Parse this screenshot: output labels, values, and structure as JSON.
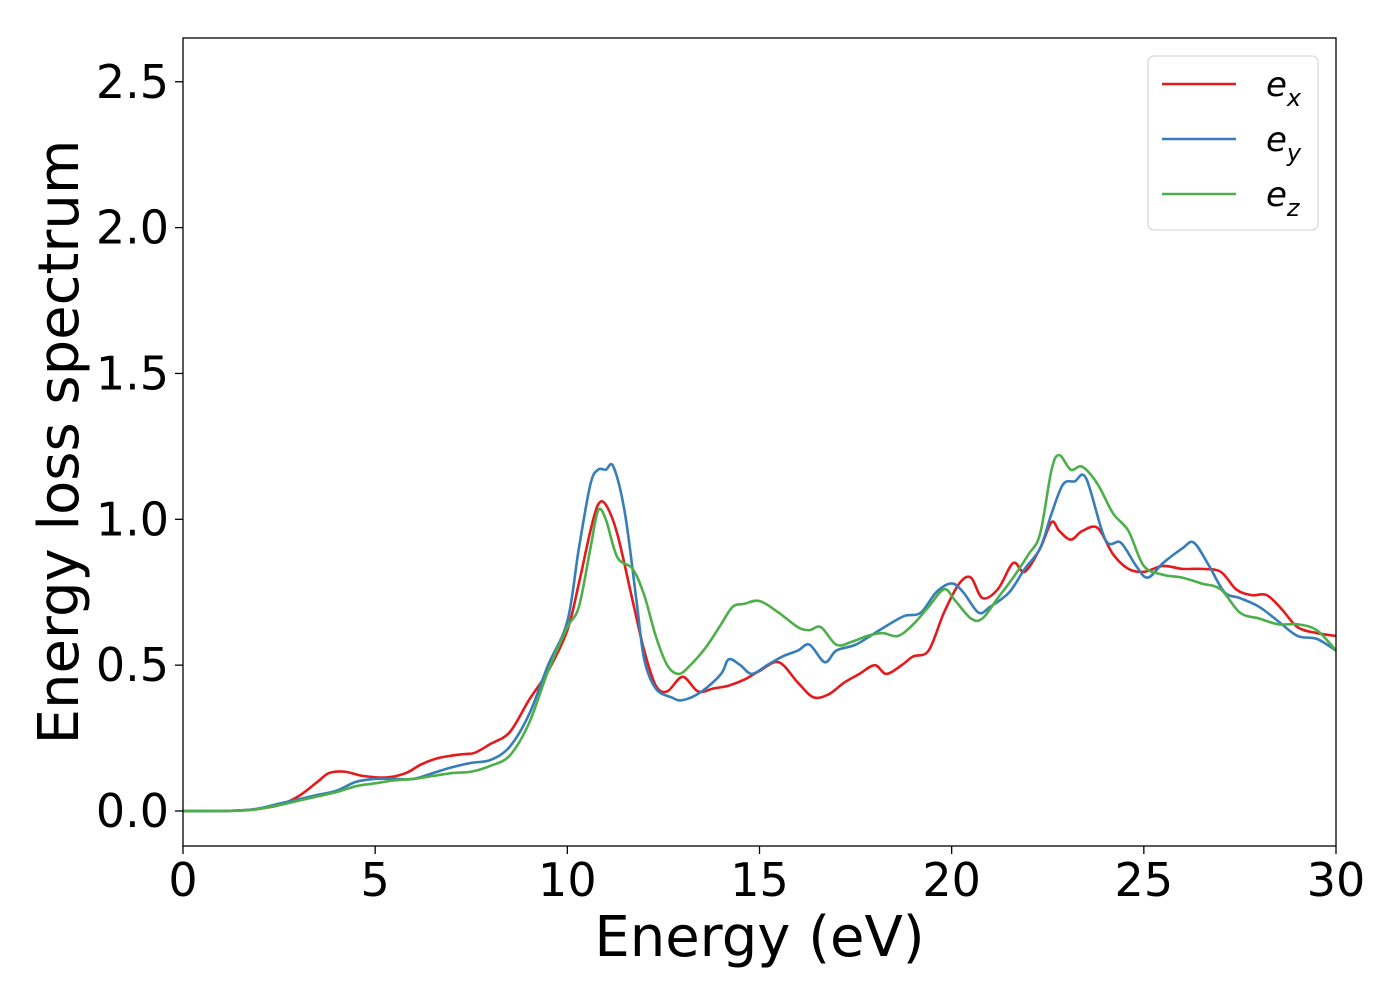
{
  "chart_data": {
    "type": "line",
    "xlabel": "Energy (eV)",
    "ylabel": "Energy loss spectrum",
    "xlim": [
      0,
      30
    ],
    "ylim": [
      -0.12,
      2.65
    ],
    "xticks": [
      0,
      5,
      10,
      15,
      20,
      25,
      30
    ],
    "yticks": [
      0.0,
      0.5,
      1.0,
      1.5,
      2.0,
      2.5
    ],
    "xtick_labels": [
      "0",
      "5",
      "10",
      "15",
      "20",
      "25",
      "30"
    ],
    "ytick_labels": [
      "0.0",
      "0.5",
      "1.0",
      "1.5",
      "2.0",
      "2.5"
    ],
    "grid": false,
    "legend_position": "top-right",
    "series": [
      {
        "name": "e_x",
        "label_main": "e",
        "label_sub": "x",
        "color": "#e41a1c",
        "x": [
          0,
          1,
          1.8,
          2.5,
          3,
          3.5,
          3.8,
          4.2,
          4.7,
          5.3,
          5.8,
          6.2,
          6.6,
          7.0,
          7.3,
          7.6,
          8.0,
          8.5,
          9.0,
          9.5,
          10.0,
          10.3,
          10.6,
          10.8,
          11.0,
          11.3,
          11.7,
          12.0,
          12.3,
          12.6,
          13.0,
          13.4,
          13.8,
          14.2,
          14.6,
          15.0,
          15.5,
          16.0,
          16.4,
          16.8,
          17.2,
          17.6,
          18.0,
          18.3,
          18.7,
          19.0,
          19.4,
          19.8,
          20.2,
          20.5,
          20.8,
          21.2,
          21.6,
          21.9,
          22.3,
          22.6,
          22.8,
          23.1,
          23.4,
          23.8,
          24.2,
          24.6,
          25.0,
          25.5,
          26.0,
          26.5,
          27.0,
          27.4,
          27.8,
          28.2,
          28.6,
          29.0,
          29.5,
          30.0
        ],
        "y": [
          0.0,
          0.0,
          0.005,
          0.02,
          0.05,
          0.1,
          0.13,
          0.135,
          0.12,
          0.115,
          0.13,
          0.16,
          0.18,
          0.19,
          0.195,
          0.2,
          0.23,
          0.27,
          0.38,
          0.48,
          0.62,
          0.78,
          0.96,
          1.05,
          1.05,
          0.95,
          0.72,
          0.55,
          0.43,
          0.41,
          0.46,
          0.41,
          0.42,
          0.43,
          0.45,
          0.48,
          0.51,
          0.44,
          0.39,
          0.4,
          0.44,
          0.47,
          0.5,
          0.47,
          0.5,
          0.53,
          0.55,
          0.68,
          0.78,
          0.8,
          0.73,
          0.76,
          0.85,
          0.82,
          0.9,
          0.99,
          0.96,
          0.93,
          0.96,
          0.97,
          0.88,
          0.83,
          0.82,
          0.84,
          0.83,
          0.83,
          0.82,
          0.76,
          0.74,
          0.74,
          0.69,
          0.63,
          0.61,
          0.6
        ]
      },
      {
        "name": "e_y",
        "label_main": "e",
        "label_sub": "y",
        "color": "#377eb8",
        "x": [
          0,
          1,
          1.8,
          2.5,
          3,
          3.5,
          4.0,
          4.5,
          5.0,
          5.5,
          6.0,
          6.5,
          7.0,
          7.5,
          8.0,
          8.5,
          9.0,
          9.5,
          10.0,
          10.3,
          10.6,
          10.8,
          11.0,
          11.2,
          11.5,
          11.8,
          12.0,
          12.3,
          12.7,
          13.0,
          13.5,
          14.0,
          14.2,
          14.5,
          14.8,
          15.2,
          15.6,
          16.0,
          16.3,
          16.7,
          17.0,
          17.5,
          18.0,
          18.5,
          18.8,
          19.2,
          19.6,
          20.0,
          20.3,
          20.7,
          21.0,
          21.5,
          21.9,
          22.3,
          22.6,
          22.9,
          23.2,
          23.5,
          24.0,
          24.4,
          24.8,
          25.1,
          25.5,
          26.0,
          26.3,
          26.7,
          27.1,
          27.5,
          28.0,
          28.5,
          29.0,
          29.5,
          30.0
        ],
        "y": [
          0.0,
          0.0,
          0.005,
          0.025,
          0.04,
          0.055,
          0.07,
          0.1,
          0.11,
          0.11,
          0.11,
          0.13,
          0.15,
          0.165,
          0.175,
          0.22,
          0.33,
          0.5,
          0.65,
          0.9,
          1.12,
          1.17,
          1.17,
          1.18,
          1.02,
          0.72,
          0.52,
          0.42,
          0.39,
          0.38,
          0.41,
          0.47,
          0.52,
          0.5,
          0.47,
          0.5,
          0.53,
          0.55,
          0.57,
          0.51,
          0.55,
          0.57,
          0.61,
          0.65,
          0.67,
          0.68,
          0.75,
          0.78,
          0.75,
          0.68,
          0.7,
          0.75,
          0.83,
          0.9,
          1.02,
          1.12,
          1.13,
          1.14,
          0.93,
          0.92,
          0.84,
          0.8,
          0.85,
          0.9,
          0.92,
          0.84,
          0.75,
          0.73,
          0.7,
          0.65,
          0.6,
          0.59,
          0.55
        ]
      },
      {
        "name": "e_z",
        "label_main": "e",
        "label_sub": "z",
        "color": "#4daf4a",
        "x": [
          0,
          1,
          1.8,
          2.5,
          3,
          3.5,
          4.0,
          4.5,
          5.0,
          5.5,
          6.0,
          6.5,
          7.0,
          7.5,
          8.0,
          8.5,
          9.0,
          9.5,
          10.0,
          10.3,
          10.6,
          10.8,
          11.0,
          11.3,
          11.7,
          12.0,
          12.3,
          12.6,
          12.9,
          13.2,
          13.6,
          14.0,
          14.3,
          14.6,
          15.0,
          15.5,
          16.0,
          16.3,
          16.6,
          17.0,
          17.4,
          17.8,
          18.2,
          18.6,
          19.0,
          19.4,
          19.8,
          20.1,
          20.5,
          20.8,
          21.2,
          21.6,
          22.0,
          22.3,
          22.6,
          22.8,
          23.1,
          23.4,
          23.8,
          24.2,
          24.6,
          25.0,
          25.5,
          26.0,
          26.5,
          27.0,
          27.5,
          28.0,
          28.5,
          29.0,
          29.5,
          30.0
        ],
        "y": [
          0.0,
          0.0,
          0.004,
          0.02,
          0.035,
          0.05,
          0.065,
          0.085,
          0.095,
          0.105,
          0.11,
          0.12,
          0.13,
          0.135,
          0.155,
          0.19,
          0.3,
          0.48,
          0.63,
          0.7,
          0.9,
          1.03,
          1.0,
          0.87,
          0.83,
          0.74,
          0.6,
          0.5,
          0.47,
          0.5,
          0.56,
          0.64,
          0.7,
          0.71,
          0.72,
          0.68,
          0.63,
          0.62,
          0.63,
          0.57,
          0.58,
          0.6,
          0.61,
          0.6,
          0.64,
          0.7,
          0.76,
          0.72,
          0.66,
          0.66,
          0.73,
          0.8,
          0.88,
          0.95,
          1.17,
          1.22,
          1.17,
          1.18,
          1.12,
          1.02,
          0.96,
          0.84,
          0.81,
          0.8,
          0.78,
          0.76,
          0.68,
          0.66,
          0.64,
          0.64,
          0.62,
          0.55
        ]
      }
    ]
  }
}
